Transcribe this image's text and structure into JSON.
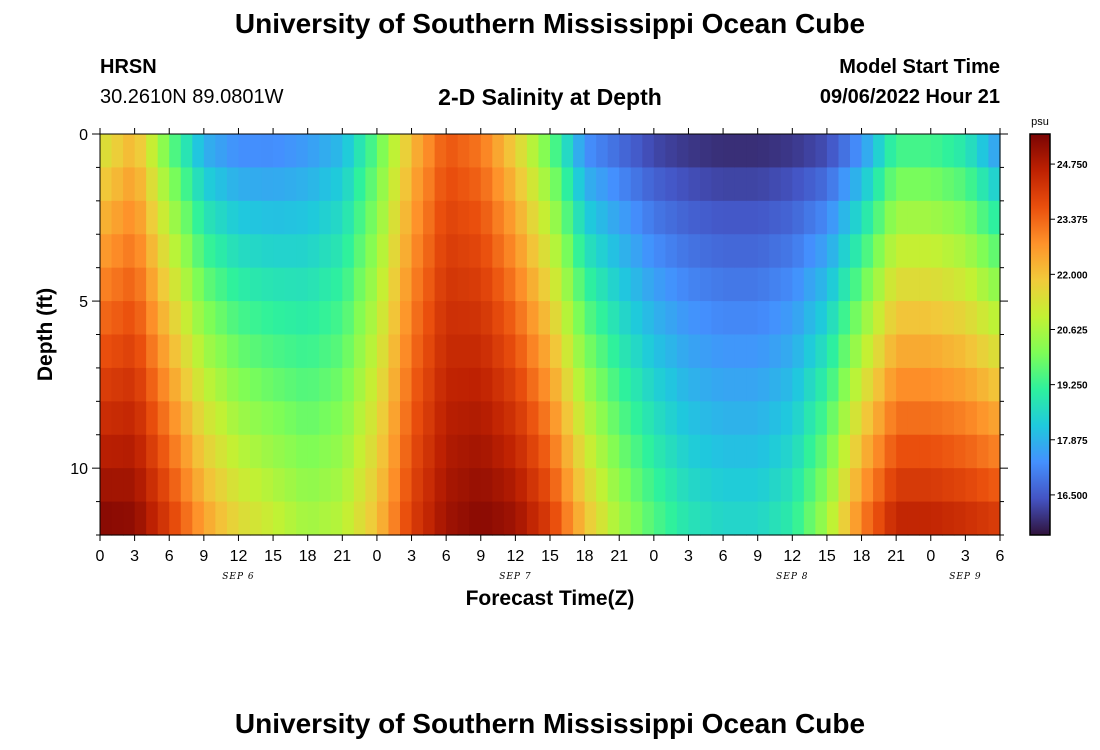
{
  "header": {
    "title": "University of Southern Mississippi Ocean Cube",
    "station": "HRSN",
    "coords": "30.2610N  89.0801W",
    "subtitle": "2-D Salinity at Depth",
    "start_label": "Model Start Time",
    "start_value": "09/06/2022 Hour 21"
  },
  "footer": {
    "title": "University of Southern Mississippi Ocean Cube"
  },
  "chart_data": {
    "type": "heatmap",
    "title": "2-D Salinity at Depth",
    "xlabel": "Forecast Time(Z)",
    "ylabel": "Depth (ft)",
    "x_range_hours": [
      0,
      78
    ],
    "x_tick_labels": [
      "0",
      "3",
      "6",
      "9",
      "12",
      "15",
      "18",
      "21",
      "0",
      "3",
      "6",
      "9",
      "12",
      "15",
      "18",
      "21",
      "0",
      "3",
      "6",
      "9",
      "12",
      "15",
      "18",
      "21",
      "0",
      "3",
      "6"
    ],
    "date_labels": [
      {
        "label": "SEP 6",
        "hour": 12
      },
      {
        "label": "SEP 7",
        "hour": 36
      },
      {
        "label": "SEP 8",
        "hour": 60
      },
      {
        "label": "SEP 9",
        "hour": 75
      }
    ],
    "ylim": [
      0,
      12
    ],
    "y_tick_labels": [
      "0",
      "5",
      "10"
    ],
    "y_ticks": [
      0,
      5,
      10
    ],
    "depth_levels": [
      0,
      1,
      2,
      3,
      4,
      5,
      6,
      7,
      8,
      9,
      10,
      11
    ],
    "colorbar": {
      "unit": "psu",
      "min": 15.5,
      "max": 25.5,
      "ticks": [
        "24.750",
        "23.375",
        "22.000",
        "20.625",
        "19.250",
        "17.875",
        "16.500"
      ],
      "tick_values": [
        24.75,
        23.375,
        22.0,
        20.625,
        19.25,
        17.875,
        16.5
      ],
      "colors": [
        "#30123b",
        "#4454c4",
        "#4490fe",
        "#1fc9dd",
        "#2ef19d",
        "#7efd56",
        "#c3f133",
        "#f1ca3a",
        "#fe922a",
        "#ea4f0d",
        "#be2102",
        "#7a0403"
      ]
    },
    "salinity_profile": {
      "hours": [
        0,
        3,
        6,
        9,
        12,
        15,
        18,
        21,
        24,
        27,
        30,
        33,
        36,
        39,
        42,
        45,
        48,
        51,
        54,
        57,
        60,
        63,
        66,
        69,
        72,
        75,
        78
      ],
      "surface_psu": [
        21.0,
        22.0,
        19.5,
        17.5,
        17.0,
        17.0,
        17.3,
        17.8,
        19.5,
        22.0,
        23.5,
        23.0,
        21.5,
        19.5,
        17.0,
        16.5,
        16.0,
        15.8,
        15.7,
        15.7,
        15.8,
        16.0,
        17.0,
        19.0,
        19.0,
        18.5,
        17.0
      ],
      "bottom_psu": [
        25.3,
        25.2,
        24.0,
        22.5,
        21.5,
        21.0,
        20.5,
        20.8,
        22.0,
        24.0,
        25.0,
        25.3,
        25.0,
        24.0,
        22.0,
        20.5,
        19.5,
        18.8,
        18.5,
        18.5,
        19.0,
        20.5,
        23.0,
        24.5,
        24.5,
        24.3,
        24.0
      ]
    }
  }
}
